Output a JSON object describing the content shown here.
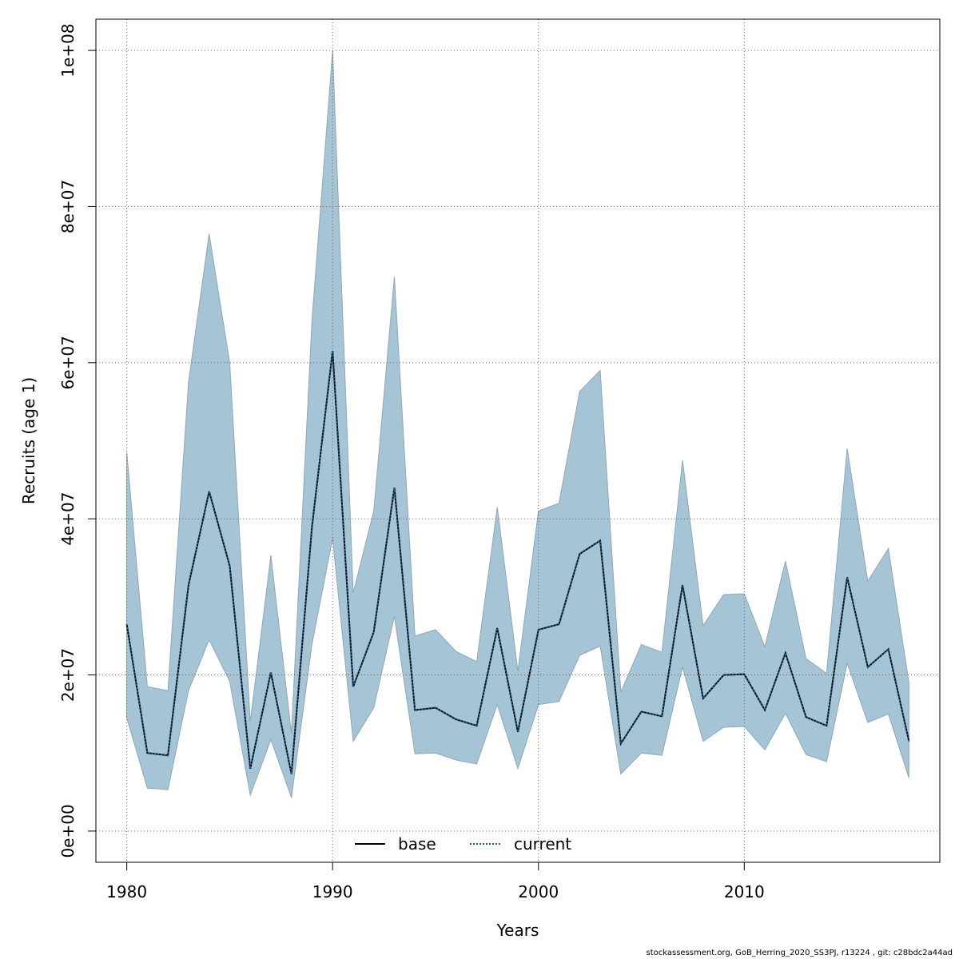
{
  "chart_data": {
    "type": "area",
    "xlabel": "Years",
    "ylabel": "Recruits (age 1)",
    "xlim": [
      1978.5,
      2019.5
    ],
    "ylim": [
      -4000000,
      104000000
    ],
    "x_ticks": [
      1980,
      1990,
      2000,
      2010
    ],
    "y_ticks": [
      0,
      20000000,
      40000000,
      60000000,
      80000000,
      100000000
    ],
    "y_tick_labels": [
      "0e+00",
      "2e+07",
      "4e+07",
      "6e+07",
      "8e+07",
      "1e+08"
    ],
    "grid": true,
    "legend_position": "bottom",
    "x": [
      1980,
      1981,
      1982,
      1983,
      1984,
      1985,
      1986,
      1987,
      1988,
      1989,
      1990,
      1991,
      1992,
      1993,
      1994,
      1995,
      1996,
      1997,
      1998,
      1999,
      2000,
      2001,
      2002,
      2003,
      2004,
      2005,
      2006,
      2007,
      2008,
      2009,
      2010,
      2011,
      2012,
      2013,
      2014,
      2015,
      2016,
      2017,
      2018
    ],
    "series": [
      {
        "name": "base",
        "line_style": "solid",
        "color": "#000000",
        "values": [
          26500000,
          10000000,
          9700000,
          31500000,
          43500000,
          34000000,
          8000000,
          20300000,
          7300000,
          39000000,
          61500000,
          18500000,
          25500000,
          44000000,
          15500000,
          15800000,
          14300000,
          13500000,
          26000000,
          12700000,
          25800000,
          26500000,
          35500000,
          37200000,
          11200000,
          15300000,
          14700000,
          31500000,
          17000000,
          20000000,
          20100000,
          15500000,
          22800000,
          14600000,
          13500000,
          32500000,
          21000000,
          23300000,
          11500000
        ]
      },
      {
        "name": "current",
        "line_style": "dotted",
        "color": "#1f5f8b",
        "values": [
          26500000,
          10000000,
          9700000,
          31500000,
          43500000,
          34000000,
          8000000,
          20300000,
          7300000,
          39000000,
          61500000,
          18500000,
          25500000,
          44000000,
          15500000,
          15800000,
          14300000,
          13500000,
          26000000,
          12700000,
          25800000,
          26500000,
          35500000,
          37200000,
          11200000,
          15300000,
          14700000,
          31500000,
          17000000,
          20000000,
          20100000,
          15500000,
          22800000,
          14600000,
          13500000,
          32500000,
          21000000,
          23300000,
          11500000
        ],
        "ci_upper": [
          48500000,
          18500000,
          18000000,
          57500000,
          76500000,
          60000000,
          14000000,
          35300000,
          12500000,
          65500000,
          100000000,
          30500000,
          41000000,
          71000000,
          25000000,
          25800000,
          23000000,
          21700000,
          41500000,
          20500000,
          41000000,
          42000000,
          56300000,
          59000000,
          17800000,
          23900000,
          22900000,
          47500000,
          26300000,
          30300000,
          30400000,
          23600000,
          34600000,
          22100000,
          20200000,
          49000000,
          32000000,
          36200000,
          19000000
        ],
        "ci_lower": [
          14500000,
          5500000,
          5300000,
          18000000,
          24500000,
          19200000,
          4600000,
          11700000,
          4300000,
          24000000,
          37500000,
          11500000,
          15800000,
          27500000,
          9900000,
          10000000,
          9100000,
          8600000,
          16200000,
          8000000,
          16200000,
          16600000,
          22500000,
          23700000,
          7300000,
          10000000,
          9700000,
          21000000,
          11500000,
          13300000,
          13400000,
          10400000,
          15100000,
          9800000,
          8900000,
          21500000,
          13900000,
          15000000,
          6800000
        ],
        "ci_color": "#a5c4d5"
      }
    ]
  },
  "footer_text": "stockassessment.org, GoB_Herring_2020_SS3PJ, r13224 , git: c28bdc2a44ad"
}
